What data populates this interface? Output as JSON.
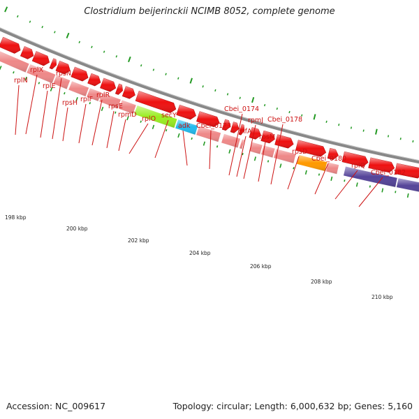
{
  "title": "Clostridium beijerinckii NCIMB 8052, complete genome",
  "accession_text": "Accession: NC_009617",
  "summary_text": "Topology: circular; Length: 6,000,632 bp; Genes: 5,160",
  "colors": {
    "gene_label": "#cc1111",
    "cds_arrow": "#ee1111",
    "rrna_generic": "#ee8888",
    "secY": "#99ee22",
    "adk": "#22bbee",
    "rpsD": "#ff9900",
    "rpoA": "#554499",
    "tick": "#229922",
    "backbone": "#888888"
  },
  "kbp_labels": [
    "198 kbp",
    "200 kbp",
    "202 kbp",
    "204 kbp",
    "206 kbp",
    "208 kbp",
    "210 kbp"
  ],
  "gene_labels": [
    "rplN",
    "rplX",
    "rplE",
    "rpsN",
    "rpsH",
    "rplF",
    "rplR",
    "rpsE",
    "rpmD",
    "rplO",
    "secY",
    "adk",
    "Cbei_0173",
    "Cbei_0174",
    "infA",
    "rpmJ",
    "rpsM",
    "Cbei_0178",
    "rpsD",
    "Cbei_0180",
    "rplQ",
    "Cbei_0182"
  ]
}
